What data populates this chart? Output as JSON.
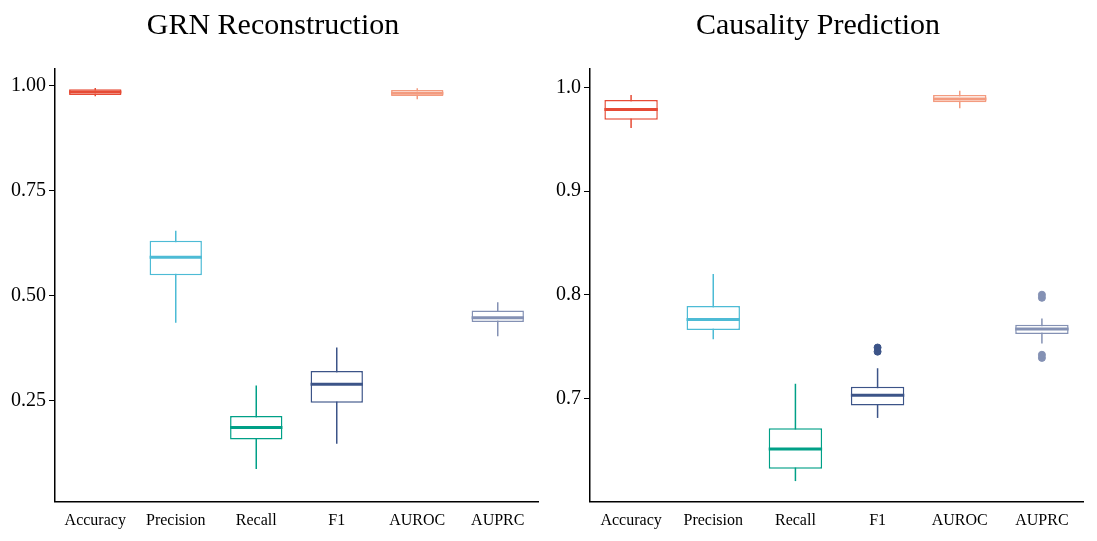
{
  "chart_data": [
    {
      "type": "box",
      "title": "GRN Reconstruction",
      "categories": [
        "Accuracy",
        "Precision",
        "Recall",
        "F1",
        "AUROC",
        "AUPRC"
      ],
      "colors": [
        "#e64b35",
        "#4dbbd5",
        "#00a087",
        "#3c5488",
        "#f39b7f",
        "#8491b4"
      ],
      "boxes": [
        {
          "low": 0.975,
          "q1": 0.978,
          "median": 0.985,
          "q3": 0.992,
          "high": 0.995
        },
        {
          "low": 0.436,
          "q1": 0.549,
          "median": 0.592,
          "q3": 0.631,
          "high": 0.655
        },
        {
          "low": 0.088,
          "q1": 0.158,
          "median": 0.187,
          "q3": 0.214,
          "high": 0.287
        },
        {
          "low": 0.148,
          "q1": 0.246,
          "median": 0.29,
          "q3": 0.321,
          "high": 0.377
        },
        {
          "low": 0.968,
          "q1": 0.976,
          "median": 0.982,
          "q3": 0.99,
          "high": 0.994
        },
        {
          "low": 0.404,
          "q1": 0.438,
          "median": 0.448,
          "q3": 0.465,
          "high": 0.485
        }
      ],
      "ylim": [
        0.01,
        1.04
      ],
      "yticks": [
        {
          "value": 0.25,
          "label": "0.25"
        },
        {
          "value": 0.5,
          "label": "0.50"
        },
        {
          "value": 0.75,
          "label": "0.75"
        },
        {
          "value": 1,
          "label": "1.00"
        }
      ]
    },
    {
      "type": "box",
      "title": "Causality Prediction",
      "categories": [
        "Accuracy",
        "Precision",
        "Recall",
        "F1",
        "AUROC",
        "AUPRC"
      ],
      "colors": [
        "#e64b35",
        "#4dbbd5",
        "#00a087",
        "#3c5488",
        "#f39b7f",
        "#8491b4"
      ],
      "boxes": [
        {
          "low": 0.961,
          "q1": 0.969,
          "median": 0.979,
          "q3": 0.988,
          "high": 0.993
        },
        {
          "low": 0.757,
          "q1": 0.766,
          "median": 0.776,
          "q3": 0.789,
          "high": 0.82
        },
        {
          "low": 0.62,
          "q1": 0.632,
          "median": 0.651,
          "q3": 0.671,
          "high": 0.714
        },
        {
          "low": 0.681,
          "q1": 0.693,
          "median": 0.703,
          "q3": 0.711,
          "high": 0.729,
          "outliers": [
            0.745,
            0.749
          ]
        },
        {
          "low": 0.98,
          "q1": 0.986,
          "median": 0.989,
          "q3": 0.993,
          "high": 0.997
        },
        {
          "low": 0.753,
          "q1": 0.762,
          "median": 0.767,
          "q3": 0.771,
          "high": 0.777,
          "outliers": [
            0.739,
            0.742,
            0.797,
            0.8
          ]
        }
      ],
      "ylim": [
        0.6,
        1.018
      ],
      "yticks": [
        0.7,
        0.8,
        0.9,
        {
          "value": 1,
          "label": "1.0"
        }
      ]
    }
  ]
}
